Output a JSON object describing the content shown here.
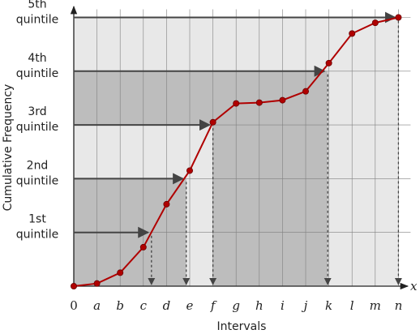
{
  "chart_data": {
    "type": "line",
    "xlabel": "Intervals",
    "ylabel": "Cumulative Frequency",
    "x_axis_symbol": "x",
    "x_ticks": [
      "0",
      "a",
      "b",
      "c",
      "d",
      "e",
      "f",
      "g",
      "h",
      "i",
      "j",
      "k",
      "l",
      "m",
      "n"
    ],
    "y_range": [
      0,
      1
    ],
    "quintiles": [
      {
        "line1": "1st",
        "line2": "quintile",
        "level": 0.2,
        "x": 3.35
      },
      {
        "line1": "2nd",
        "line2": "quintile",
        "level": 0.4,
        "x": 4.85
      },
      {
        "line1": "3rd",
        "line2": "quintile",
        "level": 0.6,
        "x": 6.0
      },
      {
        "line1": "4th",
        "line2": "quintile",
        "level": 0.8,
        "x": 10.95
      },
      {
        "line1": "5th",
        "line2": "quintile",
        "level": 1.0,
        "x": 14.0
      }
    ],
    "series": [
      {
        "x": [
          0,
          1,
          2,
          3,
          4,
          5,
          6,
          7,
          8,
          9,
          10,
          11,
          12,
          13,
          14
        ],
        "values": [
          0.0,
          0.01,
          0.05,
          0.145,
          0.305,
          0.43,
          0.61,
          0.68,
          0.683,
          0.692,
          0.725,
          0.83,
          0.94,
          0.98,
          1.0
        ]
      }
    ],
    "colors": {
      "line": "#b00000",
      "point_fill": "#b00000",
      "plot_background": "#e8e8e8",
      "shaded_region": "#bdbdbd",
      "grid": "#808080",
      "arrows": "#444444"
    },
    "grid": true
  }
}
